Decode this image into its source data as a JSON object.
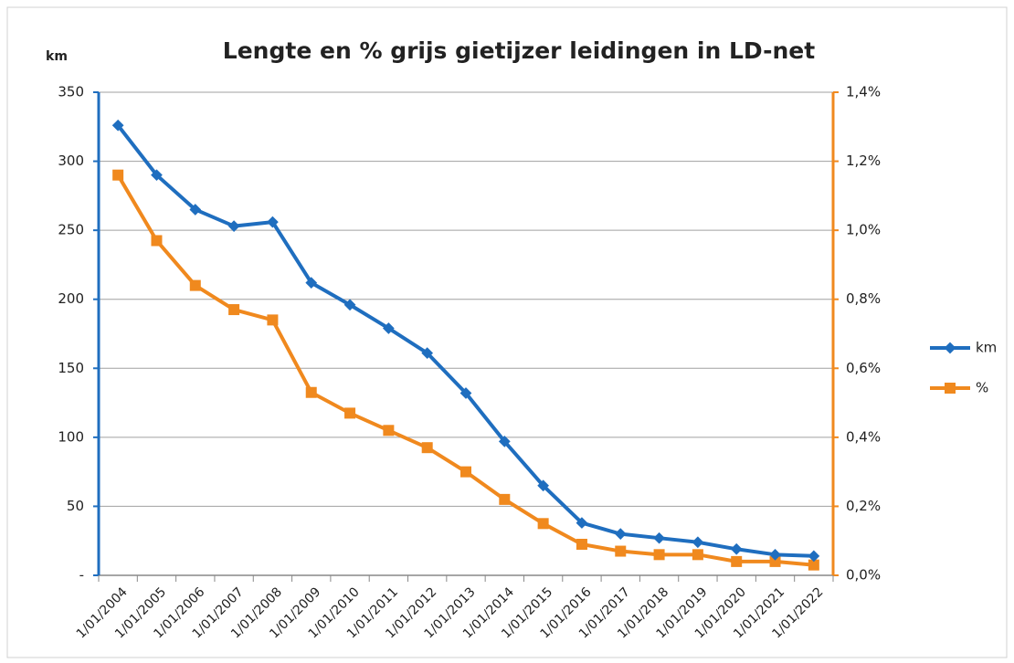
{
  "chart_data": {
    "type": "line",
    "title": "Lengte en % grijs gietijzer leidingen in LD-net",
    "y_label": "km",
    "categories": [
      "1/01/2004",
      "1/01/2005",
      "1/01/2006",
      "1/01/2007",
      "1/01/2008",
      "1/01/2009",
      "1/01/2010",
      "1/01/2011",
      "1/01/2012",
      "1/01/2013",
      "1/01/2014",
      "1/01/2015",
      "1/01/2016",
      "1/01/2017",
      "1/01/2018",
      "1/01/2019",
      "1/01/2020",
      "1/01/2021",
      "1/01/2022"
    ],
    "series": [
      {
        "name": "km",
        "color": "#1f6ebf",
        "marker": "diamond",
        "values": [
          326,
          290,
          265,
          253,
          256,
          212,
          196,
          179,
          161,
          132,
          97,
          65,
          38,
          30,
          27,
          24,
          19,
          15,
          14
        ]
      },
      {
        "name": "%",
        "color": "#f0891e",
        "marker": "square",
        "axis": "y2",
        "values": [
          1.16,
          0.97,
          0.84,
          0.77,
          0.74,
          0.53,
          0.47,
          0.42,
          0.37,
          0.3,
          0.22,
          0.15,
          0.09,
          0.07,
          0.06,
          0.06,
          0.04,
          0.04,
          0.03
        ]
      }
    ],
    "ylim": [
      0,
      350
    ],
    "yticks": [
      {
        "value": 0,
        "label": "-"
      },
      50,
      100,
      150,
      200,
      250,
      300,
      350
    ],
    "y2lim": [
      0,
      1.4
    ],
    "y2ticks": [
      {
        "value": 0,
        "label": "0,0%"
      },
      {
        "value": 0.2,
        "label": "0,2%"
      },
      {
        "value": 0.4,
        "label": "0,4%"
      },
      {
        "value": 0.6,
        "label": "0,6%"
      },
      {
        "value": 0.8,
        "label": "0,8%"
      },
      {
        "value": 1.0,
        "label": "1,0%"
      },
      {
        "value": 1.2,
        "label": "1,2%"
      },
      {
        "value": 1.4,
        "label": "1,4%"
      }
    ],
    "grid": true,
    "legend": "right"
  }
}
